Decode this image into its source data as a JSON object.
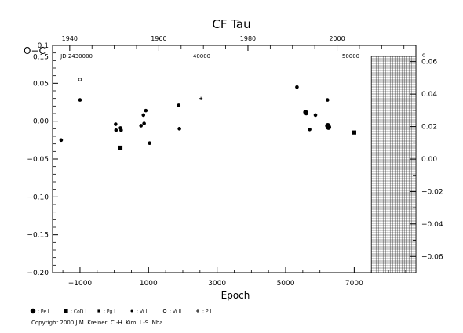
{
  "chart_data": {
    "type": "scatter",
    "title": "CF Tau",
    "xlabel": "Epoch",
    "ylabel": "O−C",
    "xlim": [
      -1800,
      8800
    ],
    "ylim": [
      -0.2,
      0.1
    ],
    "x_ticks": [
      -1000,
      1000,
      3000,
      5000,
      7000
    ],
    "x_tick_labels": [
      "−1000",
      "1000",
      "3000",
      "5000",
      "7000"
    ],
    "y_ticks": [
      -0.2,
      -0.15,
      -0.1,
      -0.05,
      0.0,
      0.05,
      0.1
    ],
    "y_tick_labels": [
      "−0.20",
      "−0.15",
      "−0.10",
      "−0.05",
      "0.00",
      "0.05",
      "0.1"
    ],
    "y_label_015": "0.15",
    "top_axis": {
      "year_ticks": [
        1940,
        1960,
        1980,
        2000
      ],
      "year_labels": [
        "1940",
        "1960",
        "1980",
        "2000"
      ],
      "year_epochs": [
        -1300,
        1300,
        3900,
        6500
      ],
      "jd_labels": [
        "JD 2430000",
        "40000",
        "50000"
      ],
      "jd_epochs": [
        -1100,
        2550,
        6900
      ]
    },
    "right_axis": {
      "unit": "days",
      "ylim": [
        -0.07,
        0.07
      ],
      "ticks": [
        0.06,
        0.04,
        0.02,
        0.0,
        -0.02,
        -0.04,
        -0.06
      ],
      "tick_labels": [
        "0.06",
        "0.04",
        "0.02",
        "0.00",
        "−0.02",
        "−0.04",
        "−0.06"
      ]
    },
    "future_region_start": 7500,
    "grid": false,
    "legend_position": "bottom-left",
    "series": [
      {
        "name": "Pe I",
        "marker": "circle-filled",
        "points": [
          [
            -1550,
            -0.025
          ],
          [
            -1000,
            0.028
          ],
          [
            40,
            -0.004
          ],
          [
            50,
            -0.012
          ],
          [
            180,
            -0.009
          ],
          [
            200,
            -0.012
          ],
          [
            780,
            -0.006
          ],
          [
            850,
            0.008
          ],
          [
            870,
            -0.003
          ],
          [
            920,
            0.014
          ],
          [
            1030,
            -0.029
          ],
          [
            1880,
            0.021
          ],
          [
            1900,
            -0.01
          ],
          [
            5330,
            0.045
          ],
          [
            5580,
            0.012
          ],
          [
            5600,
            0.01
          ],
          [
            5700,
            -0.011
          ],
          [
            5870,
            0.008
          ],
          [
            6220,
            0.028
          ],
          [
            6230,
            -0.006
          ],
          [
            6250,
            -0.008
          ]
        ]
      },
      {
        "name": "CoD I",
        "marker": "square-filled",
        "points": [
          [
            180,
            -0.035
          ],
          [
            7000,
            -0.015
          ]
        ]
      },
      {
        "name": "Pg I",
        "marker": "square-small",
        "points": []
      },
      {
        "name": "Vi I",
        "marker": "circle-small",
        "points": []
      },
      {
        "name": "Vi II",
        "marker": "circle-open",
        "points": [
          [
            -1000,
            0.055
          ]
        ]
      },
      {
        "name": "P I",
        "marker": "cross",
        "points": [
          [
            2530,
            0.03
          ]
        ]
      }
    ],
    "legend": [
      {
        "marker": "circle-filled",
        "label": ": Pe I"
      },
      {
        "marker": "square-filled",
        "label": ": CoD I"
      },
      {
        "marker": "square-small",
        "label": ": Pg I"
      },
      {
        "marker": "circle-small",
        "label": ": Vi I"
      },
      {
        "marker": "circle-open",
        "label": ": Vi II"
      },
      {
        "marker": "cross",
        "label": ": P I"
      }
    ]
  },
  "copyright": "Copyright 2000 J.M. Kreiner, C.-H. Kim, I.-S. Nha"
}
